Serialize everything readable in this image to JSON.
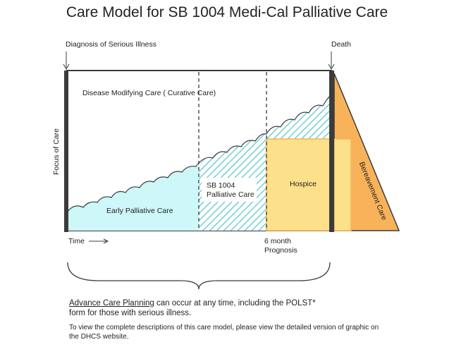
{
  "title": "Care Model for SB 1004 Medi-Cal Palliative Care",
  "labels": {
    "diagnosis": "Diagnosis of Serious Illness",
    "death": "Death",
    "y_axis": "Focus of Care",
    "disease_modifying": "Disease Modifying Care ( Curative Care)",
    "early_palliative": "Early Palliative Care",
    "sb1004_line1": "SB 1004",
    "sb1004_line2": "Palliative Care",
    "hospice": "Hospice",
    "bereavement": "Bereavement Care",
    "time": "Time",
    "prognosis_line1": "6 month",
    "prognosis_line2": "Prognosis"
  },
  "footer": {
    "acp_link": "Advance Care Planning",
    "acp_rest": " can occur at any time, including the POLST*",
    "acp_line2": "form for those with serious illness.",
    "note_line1": "To view the complete descriptions of this care model, please view the detailed version of graphic on",
    "note_line2": "the DHCS website."
  },
  "colors": {
    "early_palliative": "#cdf7f9",
    "hatch_lines": "#71cfd6",
    "hospice": "#fde08a",
    "bereavement": "#f8b35a",
    "bar": "#3b3b3b"
  }
}
